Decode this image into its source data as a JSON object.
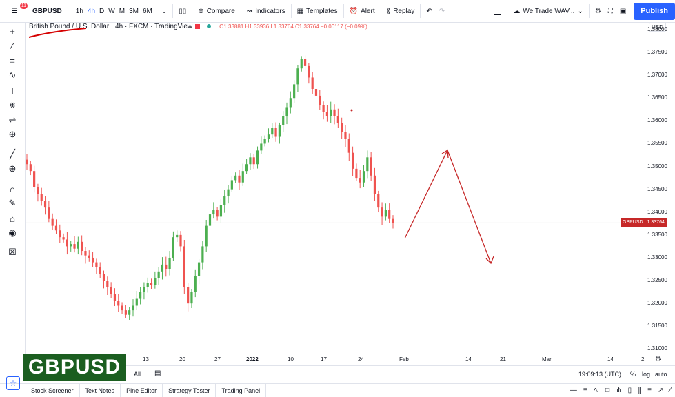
{
  "topbar": {
    "menu_badge": "11",
    "symbol": "GBPUSD",
    "intervals": [
      "1h",
      "4h",
      "D",
      "W",
      "M",
      "3M",
      "6M"
    ],
    "active_interval": "4h",
    "compare": "Compare",
    "indicators": "Indicators",
    "templates": "Templates",
    "alert": "Alert",
    "replay": "Replay",
    "layout_name": "We Trade WAV...",
    "publish": "Publish"
  },
  "legend": {
    "title": "British Pound / U.S. Dollar · 4h · FXCM · TradingView",
    "ohlc": "O1.33881 H1.33936 L1.33764 C1.33764 −0.00117 (−0.09%)"
  },
  "price_scale": {
    "currency": "USD",
    "labels": [
      "1.38000",
      "1.37500",
      "1.37000",
      "1.36500",
      "1.36000",
      "1.35500",
      "1.35000",
      "1.34500",
      "1.34000",
      "1.33500",
      "1.33000",
      "1.32500",
      "1.32000",
      "1.31500",
      "1.31000"
    ],
    "current_symbol": "GBPUSD",
    "current_value": "1.33764"
  },
  "time_axis": {
    "labels": [
      "13",
      "20",
      "27",
      "2022",
      "10",
      "17",
      "24",
      "Feb",
      "14",
      "21",
      "Mar",
      "14",
      "2"
    ]
  },
  "bottom": {
    "range_all": "All",
    "clock": "19:09:13 (UTC)",
    "percent": "%",
    "log": "log",
    "auto": "auto",
    "tabs": [
      "Stock Screener",
      "Text Notes",
      "Pine Editor",
      "Strategy Tester",
      "Trading Panel"
    ]
  },
  "logo_text": "GBPUSD",
  "colors": {
    "up": "#26a69a",
    "up_green": "#4caf50",
    "down": "#ef5350",
    "accent": "#2962ff",
    "drawing": "#c62828"
  },
  "icons": {
    "left_toolbar": [
      "crosshair-icon",
      "trendline-icon",
      "fib-icon",
      "brush-icon",
      "text-icon",
      "pattern-icon",
      "prediction-icon",
      "add-icon",
      "ruler-icon",
      "zoom-icon",
      "magnet-icon",
      "lock-drawings-icon",
      "lock-icon",
      "eye-icon",
      "trash-icon"
    ]
  },
  "chart_data": {
    "type": "candlestick",
    "symbol": "GBPUSD",
    "interval": "4h",
    "ylim": [
      1.309,
      1.3815
    ],
    "last_close": 1.33764,
    "approx_close_path": [
      1.3505,
      1.349,
      1.3455,
      1.344,
      1.3425,
      1.341,
      1.3385,
      1.337,
      1.336,
      1.3345,
      1.334,
      1.3325,
      1.333,
      1.332,
      1.3335,
      1.3315,
      1.3305,
      1.33,
      1.329,
      1.328,
      1.3265,
      1.325,
      1.3235,
      1.322,
      1.3205,
      1.3195,
      1.3185,
      1.3175,
      1.3185,
      1.3195,
      1.321,
      1.3225,
      1.3235,
      1.3245,
      1.324,
      1.3255,
      1.327,
      1.3285,
      1.3275,
      1.33,
      1.3345,
      1.335,
      1.3325,
      1.3235,
      1.32,
      1.3225,
      1.326,
      1.329,
      1.3325,
      1.337,
      1.3395,
      1.3405,
      1.339,
      1.3415,
      1.3435,
      1.345,
      1.347,
      1.348,
      1.3465,
      1.349,
      1.3505,
      1.352,
      1.3505,
      1.3535,
      1.355,
      1.356,
      1.357,
      1.3585,
      1.3565,
      1.359,
      1.361,
      1.363,
      1.365,
      1.368,
      1.3715,
      1.3735,
      1.372,
      1.3695,
      1.367,
      1.3655,
      1.3635,
      1.362,
      1.361,
      1.3625,
      1.361,
      1.3595,
      1.3575,
      1.356,
      1.353,
      1.3495,
      1.3475,
      1.3465,
      1.349,
      1.352,
      1.348,
      1.344,
      1.341,
      1.339,
      1.3405,
      1.3385,
      1.33764
    ]
  }
}
